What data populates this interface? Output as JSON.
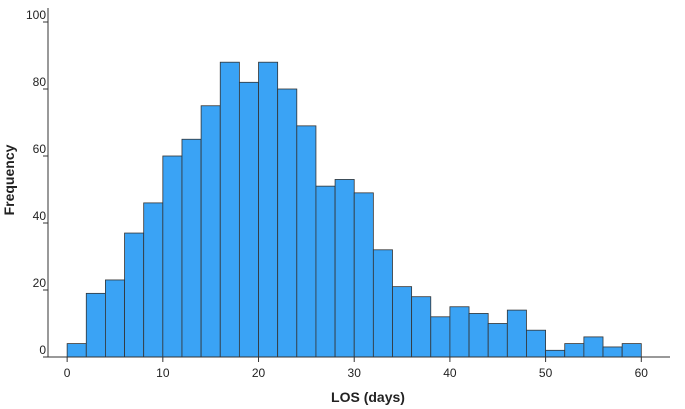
{
  "chart_data": {
    "type": "bar",
    "xlabel": "LOS (days)",
    "ylabel": "Frequency",
    "xlim": [
      -2,
      63
    ],
    "ylim": [
      0,
      100
    ],
    "bin_width": 2,
    "bin_edges_start": [
      0,
      2,
      4,
      6,
      8,
      10,
      12,
      14,
      16,
      18,
      20,
      22,
      24,
      26,
      28,
      30,
      32,
      34,
      36,
      38,
      40,
      42,
      44,
      46,
      48,
      50,
      52,
      54,
      56,
      58
    ],
    "values": [
      4,
      19,
      23,
      37,
      46,
      60,
      65,
      75,
      88,
      82,
      88,
      80,
      69,
      51,
      53,
      49,
      32,
      21,
      18,
      12,
      15,
      13,
      10,
      14,
      8,
      2,
      4,
      6,
      3,
      4
    ],
    "x_ticks": [
      "0",
      "10",
      "20",
      "30",
      "40",
      "50",
      "60"
    ],
    "y_ticks": [
      "0",
      "20",
      "40",
      "60",
      "80",
      "100"
    ],
    "grid": false,
    "bar_color": "#3AA3F5",
    "bar_edge_color": "#333333"
  }
}
